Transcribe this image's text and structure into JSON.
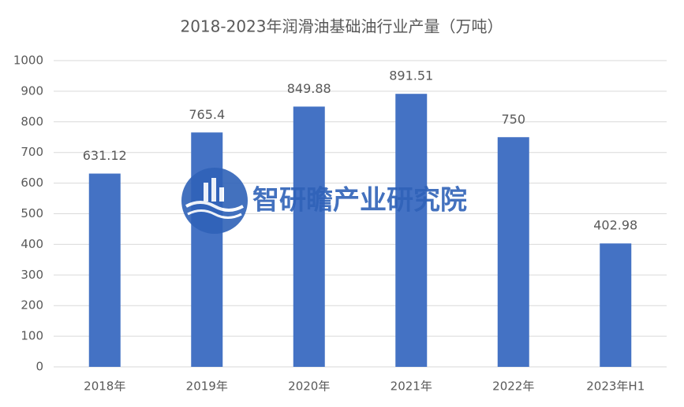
{
  "chart_data": {
    "type": "bar",
    "title": "2018-2023年润滑油基础油行业产量（万吨）",
    "categories": [
      "2018年",
      "2019年",
      "2020年",
      "2021年",
      "2022年",
      "2023年H1"
    ],
    "values": [
      631.12,
      765.4,
      849.88,
      891.51,
      750,
      402.98
    ],
    "color": "#4472c4",
    "ylim": [
      0,
      1000
    ],
    "yticks": [
      0,
      100,
      200,
      300,
      400,
      500,
      600,
      700,
      800,
      900,
      1000
    ],
    "grid": true,
    "data_labels": true
  },
  "watermark": "智研瞻产业研究院"
}
